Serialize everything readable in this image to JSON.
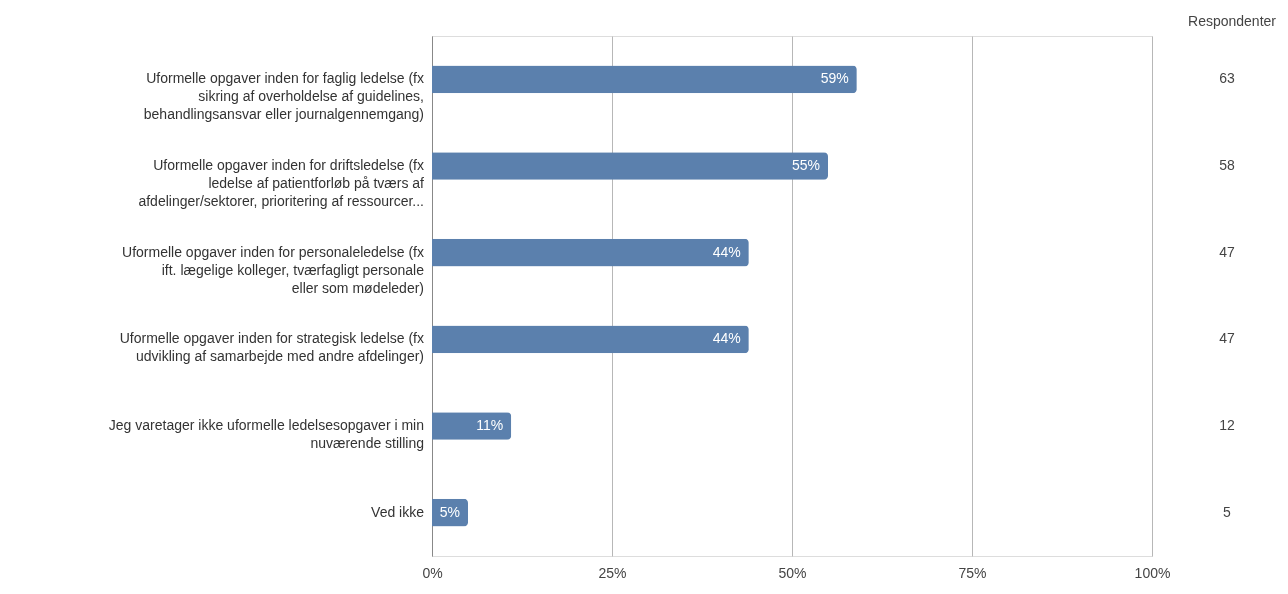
{
  "chart_data": {
    "type": "bar",
    "orientation": "horizontal",
    "categories": [
      "Uformelle opgaver inden for faglig ledelse (fx sikring af overholdelse af guidelines, behandlingsansvar eller journalgennemgang)",
      "Uformelle opgaver inden for driftsledelse (fx ledelse af patientforløb på tværs af afdelinger/sektorer, prioritering af ressourcer...",
      "Uformelle opgaver inden for personaleledelse (fx ift. lægelige kolleger, tværfagligt personale eller som mødeleder)",
      "Uformelle opgaver inden for strategisk ledelse (fx udvikling af samarbejde med andre afdelinger)",
      "Jeg varetager ikke uformelle ledelsesopgaver i min nuværende stilling",
      "Ved ikke"
    ],
    "values": [
      59,
      55,
      44,
      44,
      11,
      5
    ],
    "value_labels": [
      "59%",
      "55%",
      "44%",
      "44%",
      "11%",
      "5%"
    ],
    "color": "#5b80ad",
    "xlim": [
      0,
      100
    ],
    "xticks": [
      {
        "value": 0,
        "label": "0%"
      },
      {
        "value": 25,
        "label": "25%"
      },
      {
        "value": 50,
        "label": "50%"
      },
      {
        "value": 75,
        "label": "75%"
      },
      {
        "value": 100,
        "label": "100%"
      }
    ],
    "grid": "x",
    "legend": false,
    "annotations": [
      "Respondenter",
      "63",
      "58",
      "47",
      "47",
      "12",
      "5"
    ]
  }
}
